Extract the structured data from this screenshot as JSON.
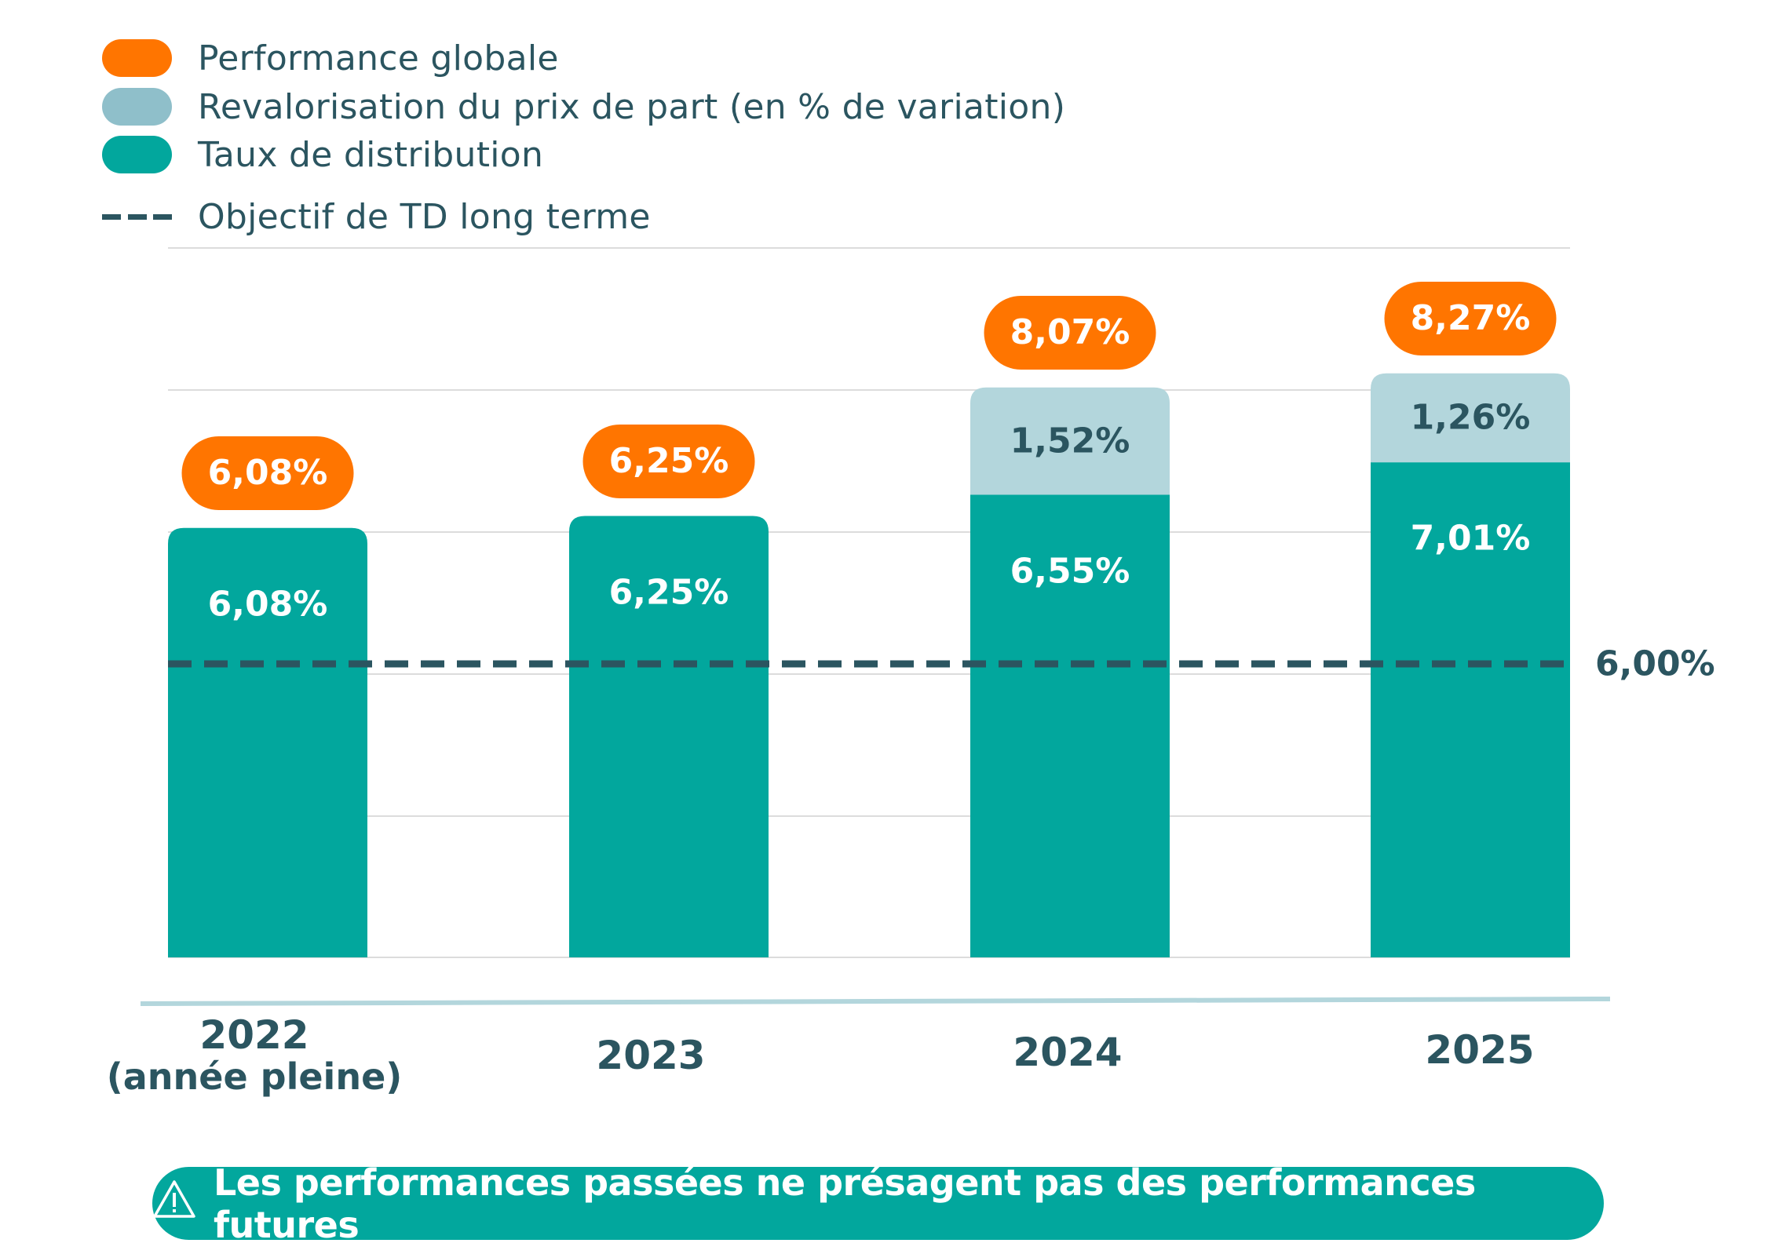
{
  "legend": {
    "items": [
      {
        "label": "Performance globale",
        "color": "#ff7500",
        "kind": "swatch"
      },
      {
        "label": "Revalorisation du prix de part (en % de variation)",
        "color": "#8fbfca",
        "kind": "swatch"
      },
      {
        "label": "Taux de distribution",
        "color": "#02a79d",
        "kind": "swatch"
      },
      {
        "label": "Objectif de TD long terme",
        "color": "#2b5560",
        "kind": "dash"
      }
    ]
  },
  "colors": {
    "performance": "#ff7500",
    "revalorisation": "#b3d6dc",
    "distribution": "#02a79d",
    "target": "#2b5560",
    "grid": "#dcdcdc",
    "axis": "#b3d6dc"
  },
  "chart_data": {
    "type": "bar",
    "stacked": true,
    "title": "",
    "xlabel": "",
    "ylabel": "",
    "ylim": [
      0,
      10
    ],
    "grid": true,
    "legend_position": "top-left",
    "categories": [
      "2022",
      "2023",
      "2024",
      "2025"
    ],
    "category_sublabels": [
      "(année pleine)",
      "",
      "",
      ""
    ],
    "series": [
      {
        "name": "Taux de distribution",
        "values": [
          6.08,
          6.25,
          6.55,
          7.01
        ],
        "labels": [
          "6,08%",
          "6,25%",
          "6,55%",
          "7,01%"
        ]
      },
      {
        "name": "Revalorisation du prix de part (en % de variation)",
        "values": [
          0,
          0,
          1.52,
          1.26
        ],
        "labels": [
          "",
          "",
          "1,52%",
          "1,26%"
        ]
      }
    ],
    "totals": {
      "name": "Performance globale",
      "values": [
        6.08,
        6.25,
        8.07,
        8.27
      ],
      "labels": [
        "6,08%",
        "6,25%",
        "8,07%",
        "8,27%"
      ]
    },
    "target_line": {
      "name": "Objectif de TD long terme",
      "value": 6.0,
      "label": "6,00%"
    }
  },
  "disclaimer": {
    "icon": "warning-triangle-icon",
    "text": "Les performances passées ne présagent pas des performances futures"
  }
}
